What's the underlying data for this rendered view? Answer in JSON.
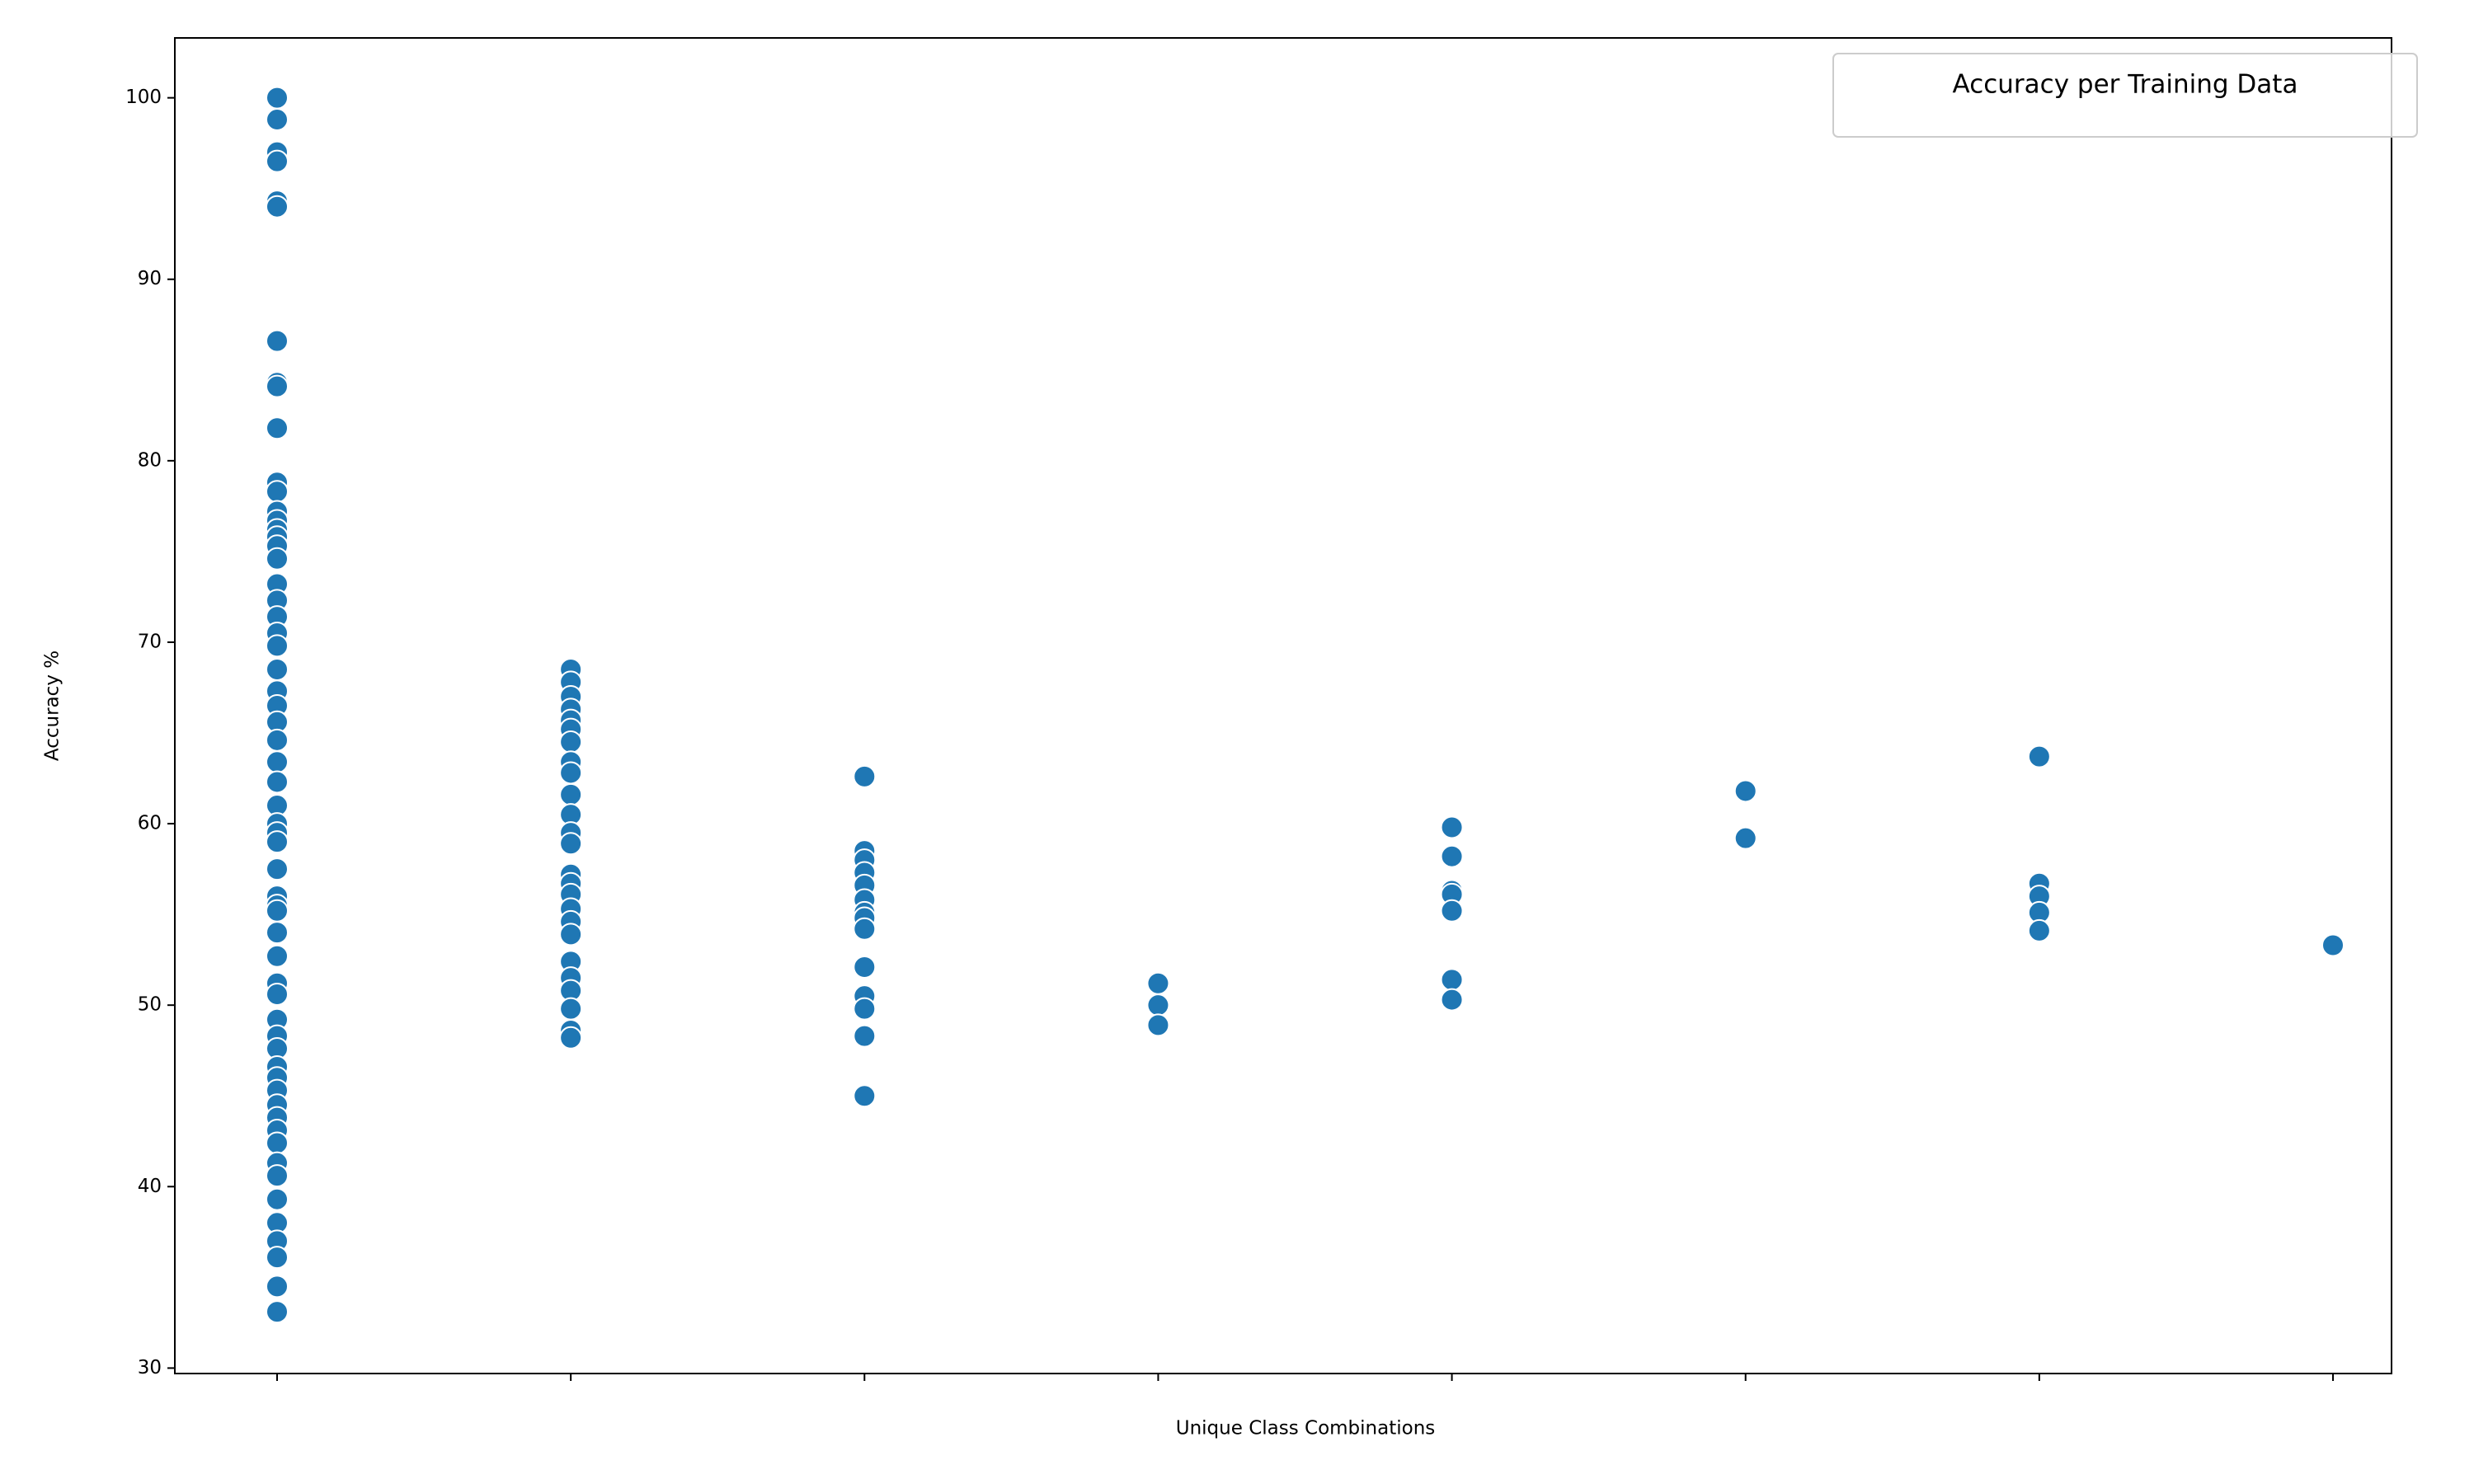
{
  "chart_data": {
    "type": "scatter",
    "legend_title": "Accuracy per Training Data",
    "legend": "upper right",
    "xlabel": "Unique Class Combinations",
    "ylabel": "Accuracy %",
    "categories": [
      null,
      null,
      null,
      null,
      null,
      null,
      null,
      null
    ],
    "color": "#1f77b4",
    "values": [
      [
        100,
        98.8,
        97,
        96.5,
        94.3,
        94,
        86.6,
        84.3,
        84.1,
        81.8,
        78.8,
        78.3,
        77.2,
        76.7,
        76.2,
        75.8,
        75.3,
        74.6,
        73.2,
        72.3,
        71.4,
        70.5,
        69.8,
        68.5,
        67.3,
        66.5,
        65.6,
        64.6,
        63.4,
        62.3,
        61,
        60,
        59.5,
        59,
        57.5,
        56,
        55.5,
        55.2,
        54,
        52.7,
        51.2,
        50.6,
        49.2,
        48.3,
        47.6,
        46.6,
        46,
        45.3,
        44.5,
        43.8,
        43.1,
        42.4,
        41.3,
        40.6,
        39.3,
        38,
        37,
        36.1,
        34.5,
        33.1
      ],
      [
        68.5,
        67.8,
        67,
        66.3,
        65.7,
        65.2,
        64.5,
        63.4,
        62.8,
        61.6,
        60.5,
        59.5,
        58.9,
        57.2,
        56.7,
        56.1,
        55.3,
        54.6,
        53.9,
        52.4,
        51.5,
        50.8,
        49.8,
        48.6,
        48.2
      ],
      [
        62.6,
        58.5,
        58,
        57.3,
        56.6,
        55.8,
        55.1,
        54.8,
        54.2,
        52.1,
        50.5,
        49.8,
        48.3,
        45
      ],
      [
        51.2,
        50,
        48.9
      ],
      [
        59.8,
        58.2,
        56.3,
        56.1,
        55.2,
        51.4,
        50.3
      ],
      [
        61.8,
        59.2
      ],
      [
        63.7,
        56.7,
        56,
        55.1,
        54.1
      ],
      [
        53.3
      ]
    ],
    "ylim": [
      29.7,
      103.3
    ],
    "yticks": [
      30,
      40,
      50,
      60,
      70,
      80,
      90,
      100
    ]
  }
}
